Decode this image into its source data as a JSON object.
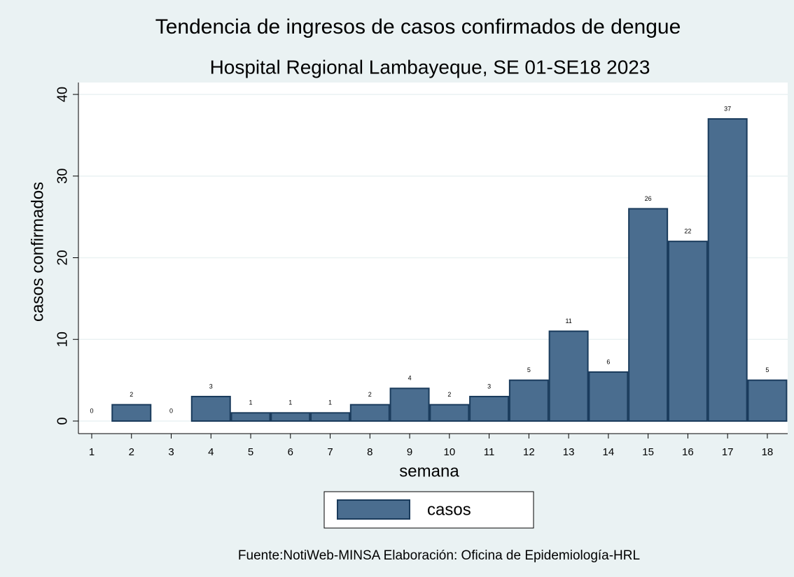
{
  "chart_data": {
    "type": "bar",
    "title": "Tendencia de ingresos de casos confirmados de dengue",
    "subtitle": "Hospital Regional Lambayeque, SE 01-SE18 2023",
    "y_label": "casos confirmados",
    "x_label": "semana",
    "source": "Fuente:NotiWeb-MINSA Elaboración: Oficina de Epidemiología-HRL",
    "categories": [
      "1",
      "2",
      "3",
      "4",
      "5",
      "6",
      "7",
      "8",
      "9",
      "10",
      "11",
      "12",
      "13",
      "14",
      "15",
      "16",
      "17",
      "18"
    ],
    "series": [
      {
        "name": "casos",
        "color": "#4a6d8f",
        "values": [
          0,
          2,
          0,
          3,
          1,
          1,
          1,
          2,
          4,
          2,
          3,
          5,
          11,
          6,
          26,
          22,
          37,
          5
        ]
      }
    ],
    "ylim": [
      0,
      40
    ],
    "yticks": [
      0,
      10,
      20,
      30,
      40
    ],
    "grid": true,
    "legend": "bottom"
  }
}
